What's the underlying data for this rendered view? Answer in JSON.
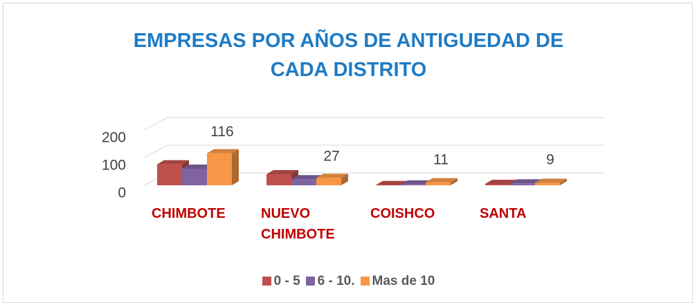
{
  "chart_data": {
    "type": "bar3d",
    "title": "EMPRESAS POR AÑOS DE ANTIGUEDAD DE CADA DISTRITO",
    "categories": [
      "CHIMBOTE",
      "NUEVO CHIMBOTE",
      "COISHCO",
      "SANTA"
    ],
    "series": [
      {
        "name": "0 - 5",
        "color": "#c0504d",
        "values": [
          76,
          40,
          1,
          5
        ]
      },
      {
        "name": "6 - 10.",
        "color": "#8064a2",
        "values": [
          60,
          22,
          3,
          7
        ]
      },
      {
        "name": "Mas de 10",
        "color": "#f79646",
        "values": [
          116,
          27,
          11,
          9
        ],
        "data_labels": true
      }
    ],
    "ylim": [
      0,
      200
    ],
    "yticks": [
      0,
      100,
      200
    ],
    "grid": true,
    "legend": "bottom"
  }
}
